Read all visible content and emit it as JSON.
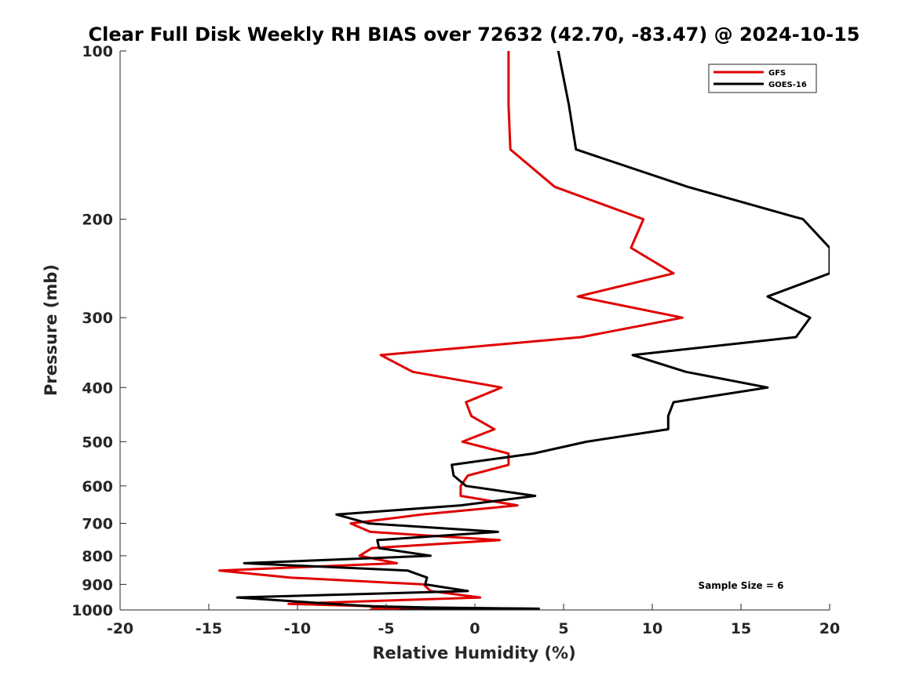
{
  "chart_data": {
    "type": "line",
    "title": "Clear Full Disk Weekly RH BIAS over 72632 (42.70, -83.47) @ 2024-10-15",
    "xlabel": "Relative Humidity (%)",
    "ylabel": "Pressure (mb)",
    "xlim": [
      -20,
      20
    ],
    "ylim": [
      100,
      1000
    ],
    "y_scale": "log",
    "y_reversed": true,
    "grid": false,
    "legend_position": "top-right",
    "xticks": [
      -20,
      -15,
      -10,
      -5,
      0,
      5,
      10,
      15,
      20
    ],
    "xtick_labels": [
      "-20",
      "-15",
      "-10",
      "-5",
      "0",
      "5",
      "10",
      "15",
      "20"
    ],
    "yticks": [
      100,
      200,
      300,
      400,
      500,
      600,
      700,
      800,
      900,
      1000
    ],
    "ytick_labels": [
      "100",
      "200",
      "300",
      "400",
      "500",
      "600",
      "700",
      "800",
      "900",
      "1000"
    ],
    "annotation": "Sample Size = 6",
    "series": [
      {
        "name": "GFS",
        "color": "#e00000",
        "points": [
          [
            1.9,
            100
          ],
          [
            1.9,
            125
          ],
          [
            2.0,
            150
          ],
          [
            4.5,
            175
          ],
          [
            9.5,
            200
          ],
          [
            8.8,
            225
          ],
          [
            11.2,
            250
          ],
          [
            5.8,
            275
          ],
          [
            11.7,
            300
          ],
          [
            6.0,
            325
          ],
          [
            -5.3,
            350
          ],
          [
            -3.5,
            375
          ],
          [
            1.5,
            400
          ],
          [
            -0.5,
            425
          ],
          [
            -0.2,
            450
          ],
          [
            1.1,
            475
          ],
          [
            -0.7,
            500
          ],
          [
            1.9,
            525
          ],
          [
            1.9,
            550
          ],
          [
            -0.4,
            575
          ],
          [
            -0.8,
            600
          ],
          [
            -0.8,
            625
          ],
          [
            2.4,
            650
          ],
          [
            -3.0,
            675
          ],
          [
            -7.0,
            700
          ],
          [
            -5.9,
            725
          ],
          [
            1.4,
            750
          ],
          [
            -5.8,
            775
          ],
          [
            -6.5,
            800
          ],
          [
            -4.4,
            825
          ],
          [
            -14.4,
            850
          ],
          [
            -10.4,
            875
          ],
          [
            -2.9,
            900
          ],
          [
            -2.5,
            925
          ],
          [
            0.3,
            950
          ],
          [
            -10.5,
            975
          ],
          [
            -5.8,
            985
          ],
          [
            -5.8,
            990
          ],
          [
            3.1,
            995
          ],
          [
            -4.0,
            998
          ],
          [
            -5.9,
            1000
          ]
        ]
      },
      {
        "name": "GOES-16",
        "color": "#000000",
        "points": [
          [
            4.7,
            100
          ],
          [
            5.3,
            125
          ],
          [
            5.7,
            150
          ],
          [
            12.0,
            175
          ],
          [
            18.5,
            200
          ],
          [
            20.0,
            225
          ],
          [
            20.0,
            250
          ],
          [
            16.5,
            275
          ],
          [
            18.9,
            300
          ],
          [
            18.1,
            325
          ],
          [
            8.9,
            350
          ],
          [
            11.9,
            375
          ],
          [
            16.5,
            400
          ],
          [
            11.2,
            425
          ],
          [
            10.9,
            450
          ],
          [
            10.9,
            475
          ],
          [
            6.3,
            500
          ],
          [
            3.3,
            525
          ],
          [
            -1.3,
            550
          ],
          [
            -1.2,
            575
          ],
          [
            -0.5,
            600
          ],
          [
            3.4,
            625
          ],
          [
            -0.8,
            650
          ],
          [
            -7.8,
            675
          ],
          [
            -6.0,
            700
          ],
          [
            1.3,
            725
          ],
          [
            -5.5,
            750
          ],
          [
            -5.4,
            775
          ],
          [
            -2.5,
            800
          ],
          [
            -13.0,
            825
          ],
          [
            -3.8,
            850
          ],
          [
            -2.7,
            875
          ],
          [
            -2.8,
            900
          ],
          [
            -0.4,
            925
          ],
          [
            -13.4,
            950
          ],
          [
            -8.1,
            975
          ],
          [
            -5.8,
            985
          ],
          [
            -2.6,
            990
          ],
          [
            3.6,
            995
          ],
          [
            -0.6,
            998
          ],
          [
            -4.2,
            1000
          ]
        ]
      }
    ]
  }
}
